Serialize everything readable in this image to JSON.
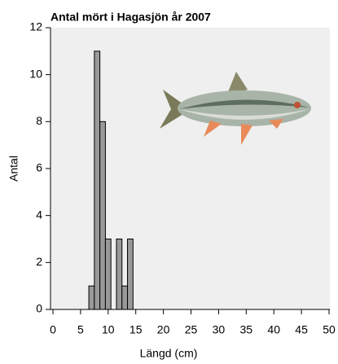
{
  "chart_data": {
    "type": "histogram",
    "title": "Antal mört i Hagasjön år 2007",
    "x_label": "Längd (cm)",
    "y_label": "Antal",
    "bins": [
      6.5,
      7.5,
      8.5,
      9.5,
      10.5,
      11.5,
      12.5,
      13.5,
      14.5
    ],
    "values": [
      1,
      11,
      8,
      3,
      0,
      3,
      1,
      3
    ],
    "color": "#999999",
    "xlim": [
      0,
      50
    ],
    "xticks": [
      0,
      5,
      10,
      15,
      20,
      25,
      30,
      35,
      40,
      45,
      50
    ],
    "ylim": [
      0,
      12
    ],
    "yticks": [
      0,
      2,
      4,
      6,
      8,
      10,
      12
    ]
  }
}
